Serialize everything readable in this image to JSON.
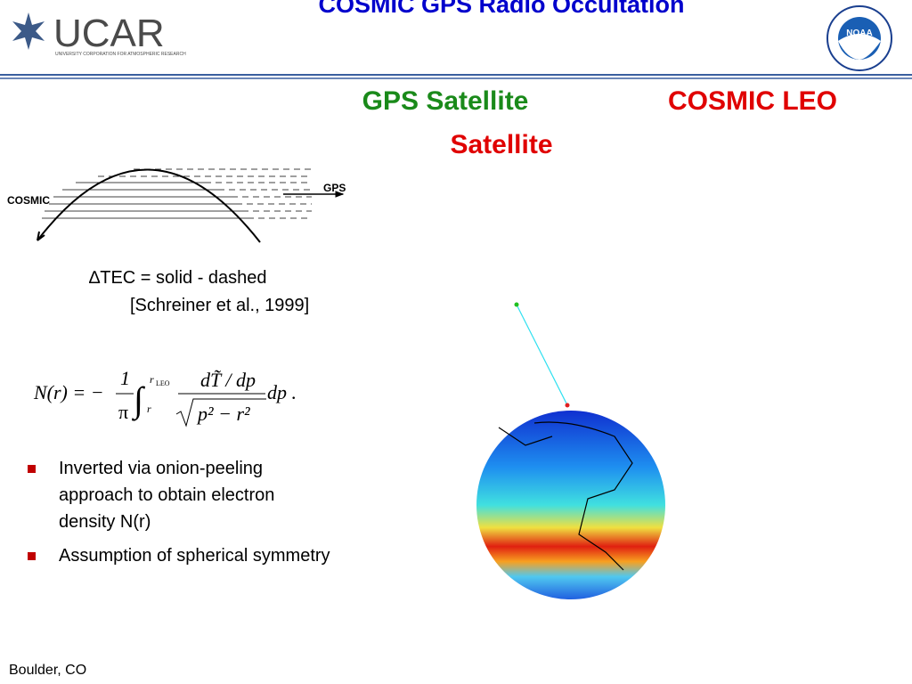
{
  "header": {
    "title": "COSMIC GPS Radio Occultation",
    "logo_left": {
      "name": "UCAR",
      "subtitle": "UNIVERSITY CORPORATION FOR ATMOSPHERIC RESEARCH"
    },
    "logo_right": "NOAA"
  },
  "labels": {
    "gps": "GPS Satellite",
    "cosmic_line1": "COSMIC LEO",
    "cosmic_line2": "Satellite"
  },
  "diagram": {
    "left_label": "COSMIC",
    "right_label": "GPS",
    "caption": "∆TEC = solid - dashed",
    "citation": "[Schreiner et al., 1999]"
  },
  "equation": {
    "lhs": "N(r) = −",
    "num": "1",
    "den": "π",
    "lower": "r",
    "upper": "r",
    "upper_sub": "LEO",
    "integrand_num": "dT̃ / dp",
    "integrand_den": "p² − r²",
    "tail": "dp ."
  },
  "bullets": [
    "Inverted via onion-peeling approach to obtain electron density N(r)",
    "Assumption of spherical symmetry"
  ],
  "footer": "Boulder, CO"
}
